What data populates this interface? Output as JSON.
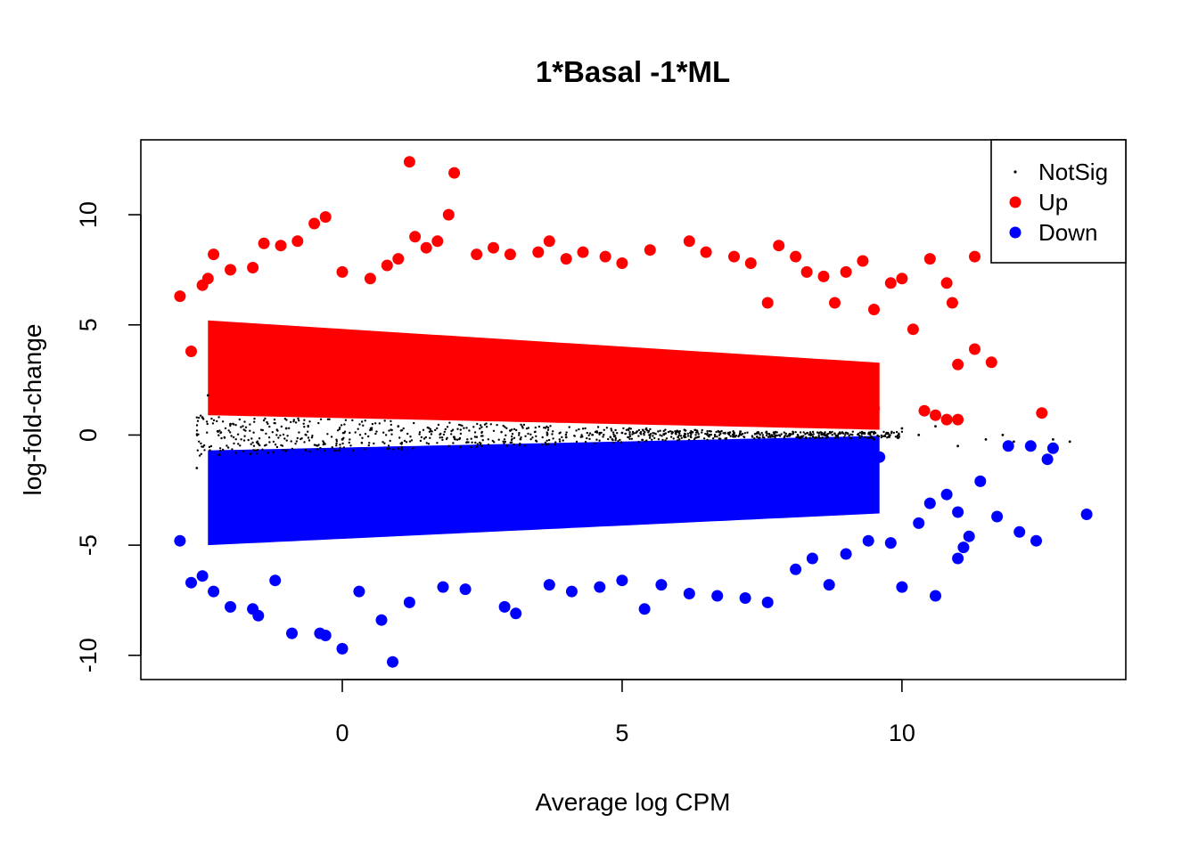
{
  "chart_data": {
    "type": "scatter",
    "title": "1*Basal -1*ML",
    "xlabel": "Average log CPM",
    "ylabel": "log-fold-change",
    "xlim": [
      -3.6,
      14.0
    ],
    "ylim": [
      -11.1,
      13.4
    ],
    "x_ticks": [
      0,
      5,
      10
    ],
    "y_ticks": [
      -10,
      -5,
      0,
      5,
      10
    ],
    "grid": false,
    "legend_position": "top-right",
    "series": [
      {
        "name": "NotSig",
        "color": "#000000",
        "marker": "small-dot",
        "points": [
          [
            -2.6,
            -1.5
          ],
          [
            -2.5,
            0.8
          ],
          [
            -2.4,
            1.8
          ],
          [
            -2.2,
            -0.9
          ],
          [
            -2.0,
            0.5
          ],
          [
            -1.5,
            -0.4
          ],
          [
            -1.0,
            0.3
          ],
          [
            0.0,
            -0.2
          ],
          [
            1.0,
            0.4
          ],
          [
            2.0,
            -0.1
          ],
          [
            3.0,
            0.2
          ],
          [
            4.0,
            -0.1
          ],
          [
            5.0,
            0.1
          ],
          [
            6.0,
            -0.1
          ],
          [
            7.0,
            0.1
          ],
          [
            8.0,
            0.0
          ],
          [
            9.0,
            0.1
          ],
          [
            9.5,
            -0.2
          ],
          [
            10.0,
            0.3
          ],
          [
            10.3,
            0.0
          ],
          [
            10.6,
            0.4
          ],
          [
            11.0,
            -0.5
          ],
          [
            11.5,
            -0.2
          ],
          [
            11.8,
            0.0
          ],
          [
            12.0,
            -0.3
          ],
          [
            12.7,
            -0.2
          ],
          [
            13.0,
            -0.3
          ]
        ]
      },
      {
        "name": "Up",
        "color": "#ff0000",
        "marker": "filled-circle",
        "points": [
          [
            -2.9,
            6.3
          ],
          [
            -2.7,
            3.8
          ],
          [
            -2.5,
            6.8
          ],
          [
            -2.4,
            7.1
          ],
          [
            -2.3,
            8.2
          ],
          [
            -2.0,
            7.5
          ],
          [
            -1.6,
            7.6
          ],
          [
            -1.4,
            8.7
          ],
          [
            -1.1,
            8.6
          ],
          [
            -0.8,
            8.8
          ],
          [
            -0.5,
            9.6
          ],
          [
            -0.3,
            9.9
          ],
          [
            0.0,
            7.4
          ],
          [
            0.5,
            7.1
          ],
          [
            0.8,
            7.7
          ],
          [
            1.0,
            8.0
          ],
          [
            1.2,
            12.4
          ],
          [
            1.3,
            9.0
          ],
          [
            1.5,
            8.5
          ],
          [
            1.7,
            8.8
          ],
          [
            1.9,
            10.0
          ],
          [
            2.0,
            11.9
          ],
          [
            2.4,
            8.2
          ],
          [
            2.7,
            8.5
          ],
          [
            3.0,
            8.2
          ],
          [
            3.5,
            8.3
          ],
          [
            3.7,
            8.8
          ],
          [
            4.0,
            8.0
          ],
          [
            4.3,
            8.3
          ],
          [
            4.7,
            8.1
          ],
          [
            5.0,
            7.8
          ],
          [
            5.5,
            8.4
          ],
          [
            6.2,
            8.8
          ],
          [
            6.5,
            8.3
          ],
          [
            7.0,
            8.1
          ],
          [
            7.3,
            7.8
          ],
          [
            7.6,
            6.0
          ],
          [
            7.8,
            8.6
          ],
          [
            8.1,
            8.1
          ],
          [
            8.3,
            7.4
          ],
          [
            8.6,
            7.2
          ],
          [
            8.8,
            6.0
          ],
          [
            9.0,
            7.4
          ],
          [
            9.3,
            7.9
          ],
          [
            9.5,
            5.7
          ],
          [
            9.8,
            6.9
          ],
          [
            10.0,
            7.1
          ],
          [
            10.2,
            4.8
          ],
          [
            10.5,
            8.0
          ],
          [
            10.8,
            6.9
          ],
          [
            10.9,
            6.0
          ],
          [
            11.0,
            3.2
          ],
          [
            11.3,
            8.1
          ],
          [
            11.0,
            0.7
          ],
          [
            10.8,
            0.7
          ],
          [
            10.4,
            1.1
          ],
          [
            10.6,
            0.9
          ],
          [
            11.3,
            3.9
          ],
          [
            11.6,
            3.3
          ],
          [
            12.5,
            1.0
          ],
          [
            -1.0,
            3.5
          ],
          [
            0.0,
            3.0
          ],
          [
            1.0,
            2.8
          ],
          [
            2.0,
            3.5
          ],
          [
            3.0,
            2.5
          ],
          [
            4.0,
            3.0
          ],
          [
            5.0,
            2.2
          ],
          [
            6.0,
            2.4
          ],
          [
            7.0,
            1.8
          ],
          [
            8.0,
            2.0
          ],
          [
            9.0,
            1.6
          ],
          [
            9.5,
            1.2
          ]
        ]
      },
      {
        "name": "Down",
        "color": "#0000ff",
        "marker": "filled-circle",
        "points": [
          [
            -2.9,
            -4.8
          ],
          [
            -2.7,
            -6.7
          ],
          [
            -2.5,
            -6.4
          ],
          [
            -2.3,
            -7.1
          ],
          [
            -2.0,
            -7.8
          ],
          [
            -1.6,
            -7.9
          ],
          [
            -1.5,
            -8.2
          ],
          [
            -1.2,
            -6.6
          ],
          [
            -0.9,
            -9.0
          ],
          [
            -0.4,
            -9.0
          ],
          [
            -0.3,
            -9.1
          ],
          [
            0.0,
            -9.7
          ],
          [
            0.3,
            -7.1
          ],
          [
            0.7,
            -8.4
          ],
          [
            0.9,
            -10.3
          ],
          [
            1.2,
            -7.6
          ],
          [
            1.8,
            -6.9
          ],
          [
            2.2,
            -7.0
          ],
          [
            2.9,
            -7.8
          ],
          [
            3.1,
            -8.1
          ],
          [
            3.7,
            -6.8
          ],
          [
            4.1,
            -7.1
          ],
          [
            4.6,
            -6.9
          ],
          [
            5.0,
            -6.6
          ],
          [
            5.4,
            -7.9
          ],
          [
            5.7,
            -6.8
          ],
          [
            6.2,
            -7.2
          ],
          [
            6.7,
            -7.3
          ],
          [
            7.2,
            -7.4
          ],
          [
            7.6,
            -7.6
          ],
          [
            8.1,
            -6.1
          ],
          [
            8.4,
            -5.6
          ],
          [
            8.7,
            -6.8
          ],
          [
            9.0,
            -5.4
          ],
          [
            9.4,
            -4.8
          ],
          [
            9.8,
            -4.9
          ],
          [
            10.0,
            -6.9
          ],
          [
            10.3,
            -4.0
          ],
          [
            10.5,
            -3.1
          ],
          [
            10.6,
            -7.3
          ],
          [
            10.8,
            -2.7
          ],
          [
            11.0,
            -3.5
          ],
          [
            11.2,
            -4.6
          ],
          [
            11.4,
            -2.1
          ],
          [
            11.7,
            -3.7
          ],
          [
            11.9,
            -0.5
          ],
          [
            12.1,
            -4.4
          ],
          [
            12.3,
            -0.5
          ],
          [
            12.4,
            -4.8
          ],
          [
            12.7,
            -0.6
          ],
          [
            12.6,
            -1.1
          ],
          [
            13.3,
            -3.6
          ],
          [
            11.1,
            -5.1
          ],
          [
            11.0,
            -5.6
          ],
          [
            -1.0,
            -3.0
          ],
          [
            0.0,
            -2.5
          ],
          [
            1.0,
            -2.8
          ],
          [
            2.0,
            -2.2
          ],
          [
            3.0,
            -3.0
          ],
          [
            4.0,
            -2.0
          ],
          [
            5.0,
            -2.5
          ],
          [
            6.0,
            -2.2
          ],
          [
            7.0,
            -1.8
          ],
          [
            8.0,
            -2.0
          ],
          [
            9.0,
            -1.4
          ],
          [
            9.6,
            -1.0
          ]
        ]
      }
    ]
  }
}
